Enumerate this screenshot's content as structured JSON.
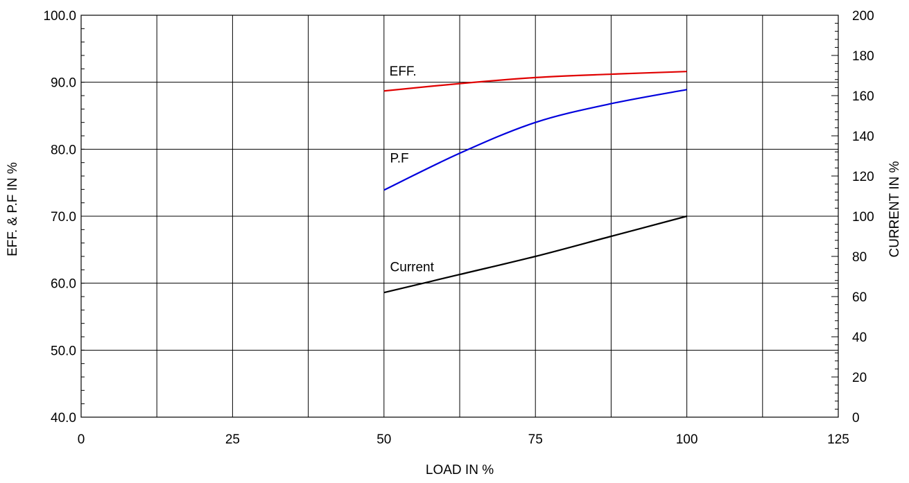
{
  "chart_data": {
    "type": "line",
    "xlabel": "LOAD IN %",
    "ylabel_left": "EFF. & P.F IN %",
    "ylabel_right": "CURRENT IN %",
    "xlim": [
      0,
      125
    ],
    "ylim_left": [
      40,
      100
    ],
    "ylim_right": [
      0,
      200
    ],
    "grid": true,
    "x_ticks": [
      0,
      25,
      50,
      75,
      100,
      125
    ],
    "x_tick_labels": [
      "0",
      "25",
      "50",
      "75",
      "100",
      "125"
    ],
    "x_grid": [
      0,
      12.5,
      25,
      37.5,
      50,
      62.5,
      75,
      87.5,
      100,
      112.5,
      125
    ],
    "y_left_ticks": [
      40,
      50,
      60,
      70,
      80,
      90,
      100
    ],
    "y_left_tick_labels": [
      "40.0",
      "50.0",
      "60.0",
      "70.0",
      "80.0",
      "90.0",
      "100.0"
    ],
    "y_right_ticks": [
      0,
      20,
      40,
      60,
      80,
      100,
      120,
      140,
      160,
      180,
      200
    ],
    "y_right_tick_labels": [
      "0",
      "20",
      "40",
      "60",
      "80",
      "100",
      "120",
      "140",
      "160",
      "180",
      "200"
    ],
    "series": [
      {
        "name": "EFF.",
        "axis": "left",
        "color": "#e00000",
        "x": [
          50,
          62.5,
          75,
          87.5,
          100
        ],
        "y": [
          88.7,
          89.8,
          90.7,
          91.2,
          91.6
        ]
      },
      {
        "name": "P.F",
        "axis": "left",
        "color": "#0000dd",
        "x": [
          50,
          62.5,
          75,
          87.5,
          100
        ],
        "y": [
          73.9,
          79.4,
          84.0,
          86.8,
          88.9
        ]
      },
      {
        "name": "Current",
        "axis": "right",
        "color": "#000000",
        "x": [
          50,
          62.5,
          75,
          87.5,
          100
        ],
        "y": [
          62,
          71,
          80,
          90,
          100
        ]
      }
    ]
  }
}
